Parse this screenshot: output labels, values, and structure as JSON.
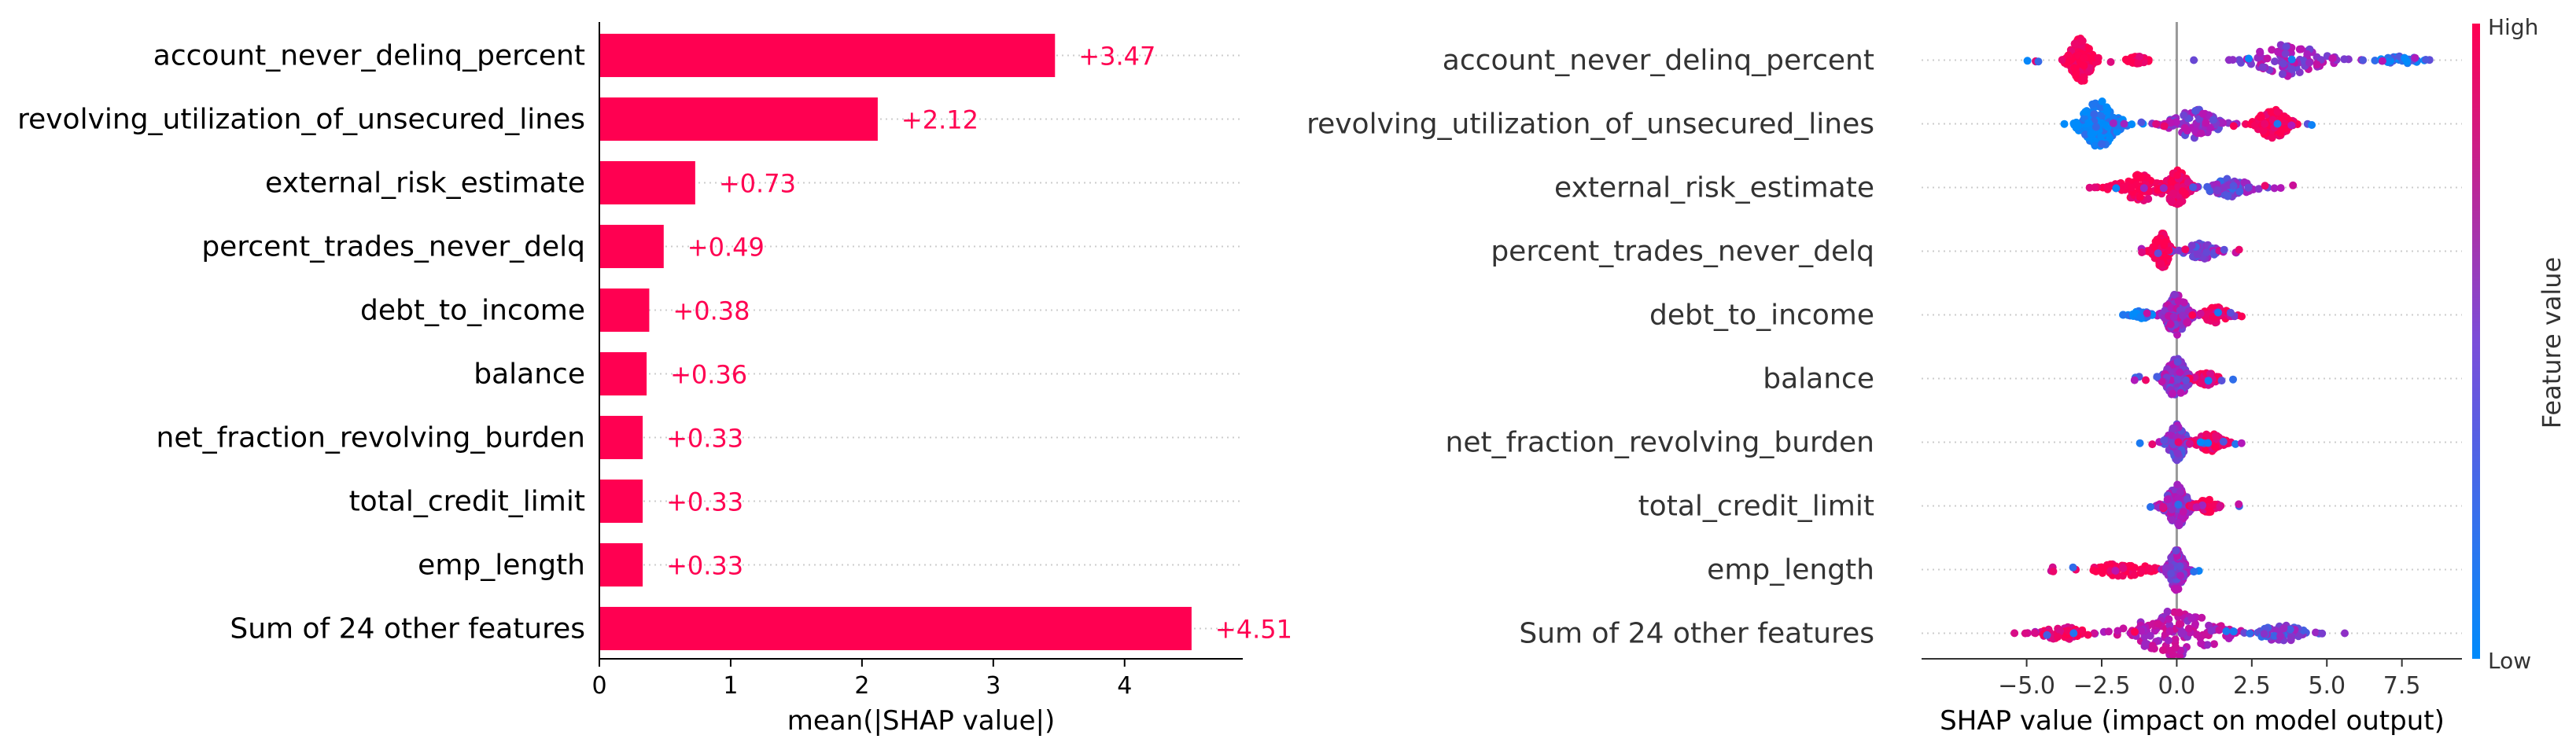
{
  "colors": {
    "positive": "#ff0051",
    "negative": "#008bfb",
    "purple": "#b416b8",
    "axis": "#000000",
    "grid": "#cccccc",
    "zero_line": "#999999",
    "label": "#333333"
  },
  "chart_data": [
    {
      "type": "bar",
      "title": "",
      "xlabel": "mean(|SHAP value|)",
      "ylabel": "",
      "xlim": [
        0,
        4.9
      ],
      "xticks": [
        {
          "value": 0,
          "label": "0"
        },
        {
          "value": 1,
          "label": "1"
        },
        {
          "value": 2,
          "label": "2"
        },
        {
          "value": 3,
          "label": "3"
        },
        {
          "value": 4,
          "label": "4"
        }
      ],
      "categories": [
        "account_never_delinq_percent",
        "revolving_utilization_of_unsecured_lines",
        "external_risk_estimate",
        "percent_trades_never_delq",
        "debt_to_income",
        "balance",
        "net_fraction_revolving_burden",
        "total_credit_limit",
        "emp_length",
        "Sum of 24 other features"
      ],
      "values": [
        3.47,
        2.12,
        0.73,
        0.49,
        0.38,
        0.36,
        0.33,
        0.33,
        0.33,
        4.51
      ],
      "value_labels": [
        "+3.47",
        "+2.12",
        "+0.73",
        "+0.49",
        "+0.38",
        "+0.36",
        "+0.33",
        "+0.33",
        "+0.33",
        "+4.51"
      ],
      "grid": "horizontal dotted"
    },
    {
      "type": "scatter",
      "title": "",
      "xlabel": "SHAP value (impact on model output)",
      "ylabel": "",
      "xlim": [
        -8.5,
        9.5
      ],
      "xticks": [
        {
          "value": -5,
          "label": "−5.0"
        },
        {
          "value": -2.5,
          "label": "−2.5"
        },
        {
          "value": 0,
          "label": "0.0"
        },
        {
          "value": 2.5,
          "label": "2.5"
        },
        {
          "value": 5,
          "label": "5.0"
        },
        {
          "value": 7.5,
          "label": "7.5"
        }
      ],
      "categories": [
        "account_never_delinq_percent",
        "revolving_utilization_of_unsecured_lines",
        "external_risk_estimate",
        "percent_trades_never_delq",
        "debt_to_income",
        "balance",
        "net_fraction_revolving_burden",
        "total_credit_limit",
        "emp_length",
        "Sum of 24 other features"
      ],
      "distributions": [
        {
          "min": -5.2,
          "max": 8.7,
          "clusters": [
            {
              "center": -3.2,
              "spread": 0.6,
              "width": 0.85,
              "hue": 1.0
            },
            {
              "center": 3.7,
              "spread": 2.0,
              "width": 0.6,
              "hue": 0.45
            },
            {
              "center": 7.5,
              "spread": 1.0,
              "width": 0.15,
              "hue": 0.1
            },
            {
              "center": -1.3,
              "spread": 0.5,
              "width": 0.15,
              "hue": 0.95
            }
          ]
        },
        {
          "min": -4.7,
          "max": 4.7,
          "clusters": [
            {
              "center": -2.6,
              "spread": 1.0,
              "width": 0.9,
              "hue": 0.0
            },
            {
              "center": 0.6,
              "spread": 1.3,
              "width": 0.55,
              "hue": 0.4
            },
            {
              "center": 3.2,
              "spread": 0.9,
              "width": 0.55,
              "hue": 0.95
            }
          ]
        },
        {
          "min": -3.4,
          "max": 4.0,
          "clusters": [
            {
              "center": -1.2,
              "spread": 1.3,
              "width": 0.5,
              "hue": 0.95
            },
            {
              "center": 0.0,
              "spread": 0.6,
              "width": 0.7,
              "hue": 0.9
            },
            {
              "center": 1.8,
              "spread": 1.2,
              "width": 0.35,
              "hue": 0.3
            }
          ]
        },
        {
          "min": -1.3,
          "max": 2.5,
          "clusters": [
            {
              "center": -0.5,
              "spread": 0.4,
              "width": 0.7,
              "hue": 1.0
            },
            {
              "center": 0.8,
              "spread": 0.8,
              "width": 0.3,
              "hue": 0.35
            }
          ]
        },
        {
          "min": -2.1,
          "max": 2.7,
          "clusters": [
            {
              "center": 0.0,
              "spread": 0.6,
              "width": 0.8,
              "hue": 0.45
            },
            {
              "center": 1.3,
              "spread": 0.7,
              "width": 0.3,
              "hue": 0.95
            },
            {
              "center": -1.2,
              "spread": 0.5,
              "width": 0.15,
              "hue": 0.0
            }
          ]
        },
        {
          "min": -1.5,
          "max": 2.1,
          "clusters": [
            {
              "center": 0.0,
              "spread": 0.6,
              "width": 0.75,
              "hue": 0.4
            },
            {
              "center": 1.0,
              "spread": 0.6,
              "width": 0.25,
              "hue": 0.85
            }
          ]
        },
        {
          "min": -1.4,
          "max": 2.2,
          "clusters": [
            {
              "center": 0.0,
              "spread": 0.5,
              "width": 0.7,
              "hue": 0.35
            },
            {
              "center": 1.1,
              "spread": 0.7,
              "width": 0.35,
              "hue": 0.9
            }
          ]
        },
        {
          "min": -1.6,
          "max": 2.1,
          "clusters": [
            {
              "center": 0.0,
              "spread": 0.6,
              "width": 0.8,
              "hue": 0.45
            },
            {
              "center": 1.0,
              "spread": 0.6,
              "width": 0.25,
              "hue": 0.9
            }
          ]
        },
        {
          "min": -4.3,
          "max": 1.4,
          "clusters": [
            {
              "center": -1.8,
              "spread": 1.5,
              "width": 0.25,
              "hue": 1.0
            },
            {
              "center": 0.0,
              "spread": 0.4,
              "width": 0.8,
              "hue": 0.4
            }
          ]
        },
        {
          "min": -6.3,
          "max": 5.9,
          "clusters": [
            {
              "center": 0.0,
              "spread": 2.4,
              "width": 0.85,
              "hue": 0.55
            },
            {
              "center": -3.8,
              "spread": 1.2,
              "width": 0.25,
              "hue": 0.85
            },
            {
              "center": 3.5,
              "spread": 1.3,
              "width": 0.3,
              "hue": 0.3
            }
          ]
        }
      ],
      "colorbar": {
        "label": "Feature value",
        "high_label": "High",
        "low_label": "Low"
      }
    }
  ]
}
